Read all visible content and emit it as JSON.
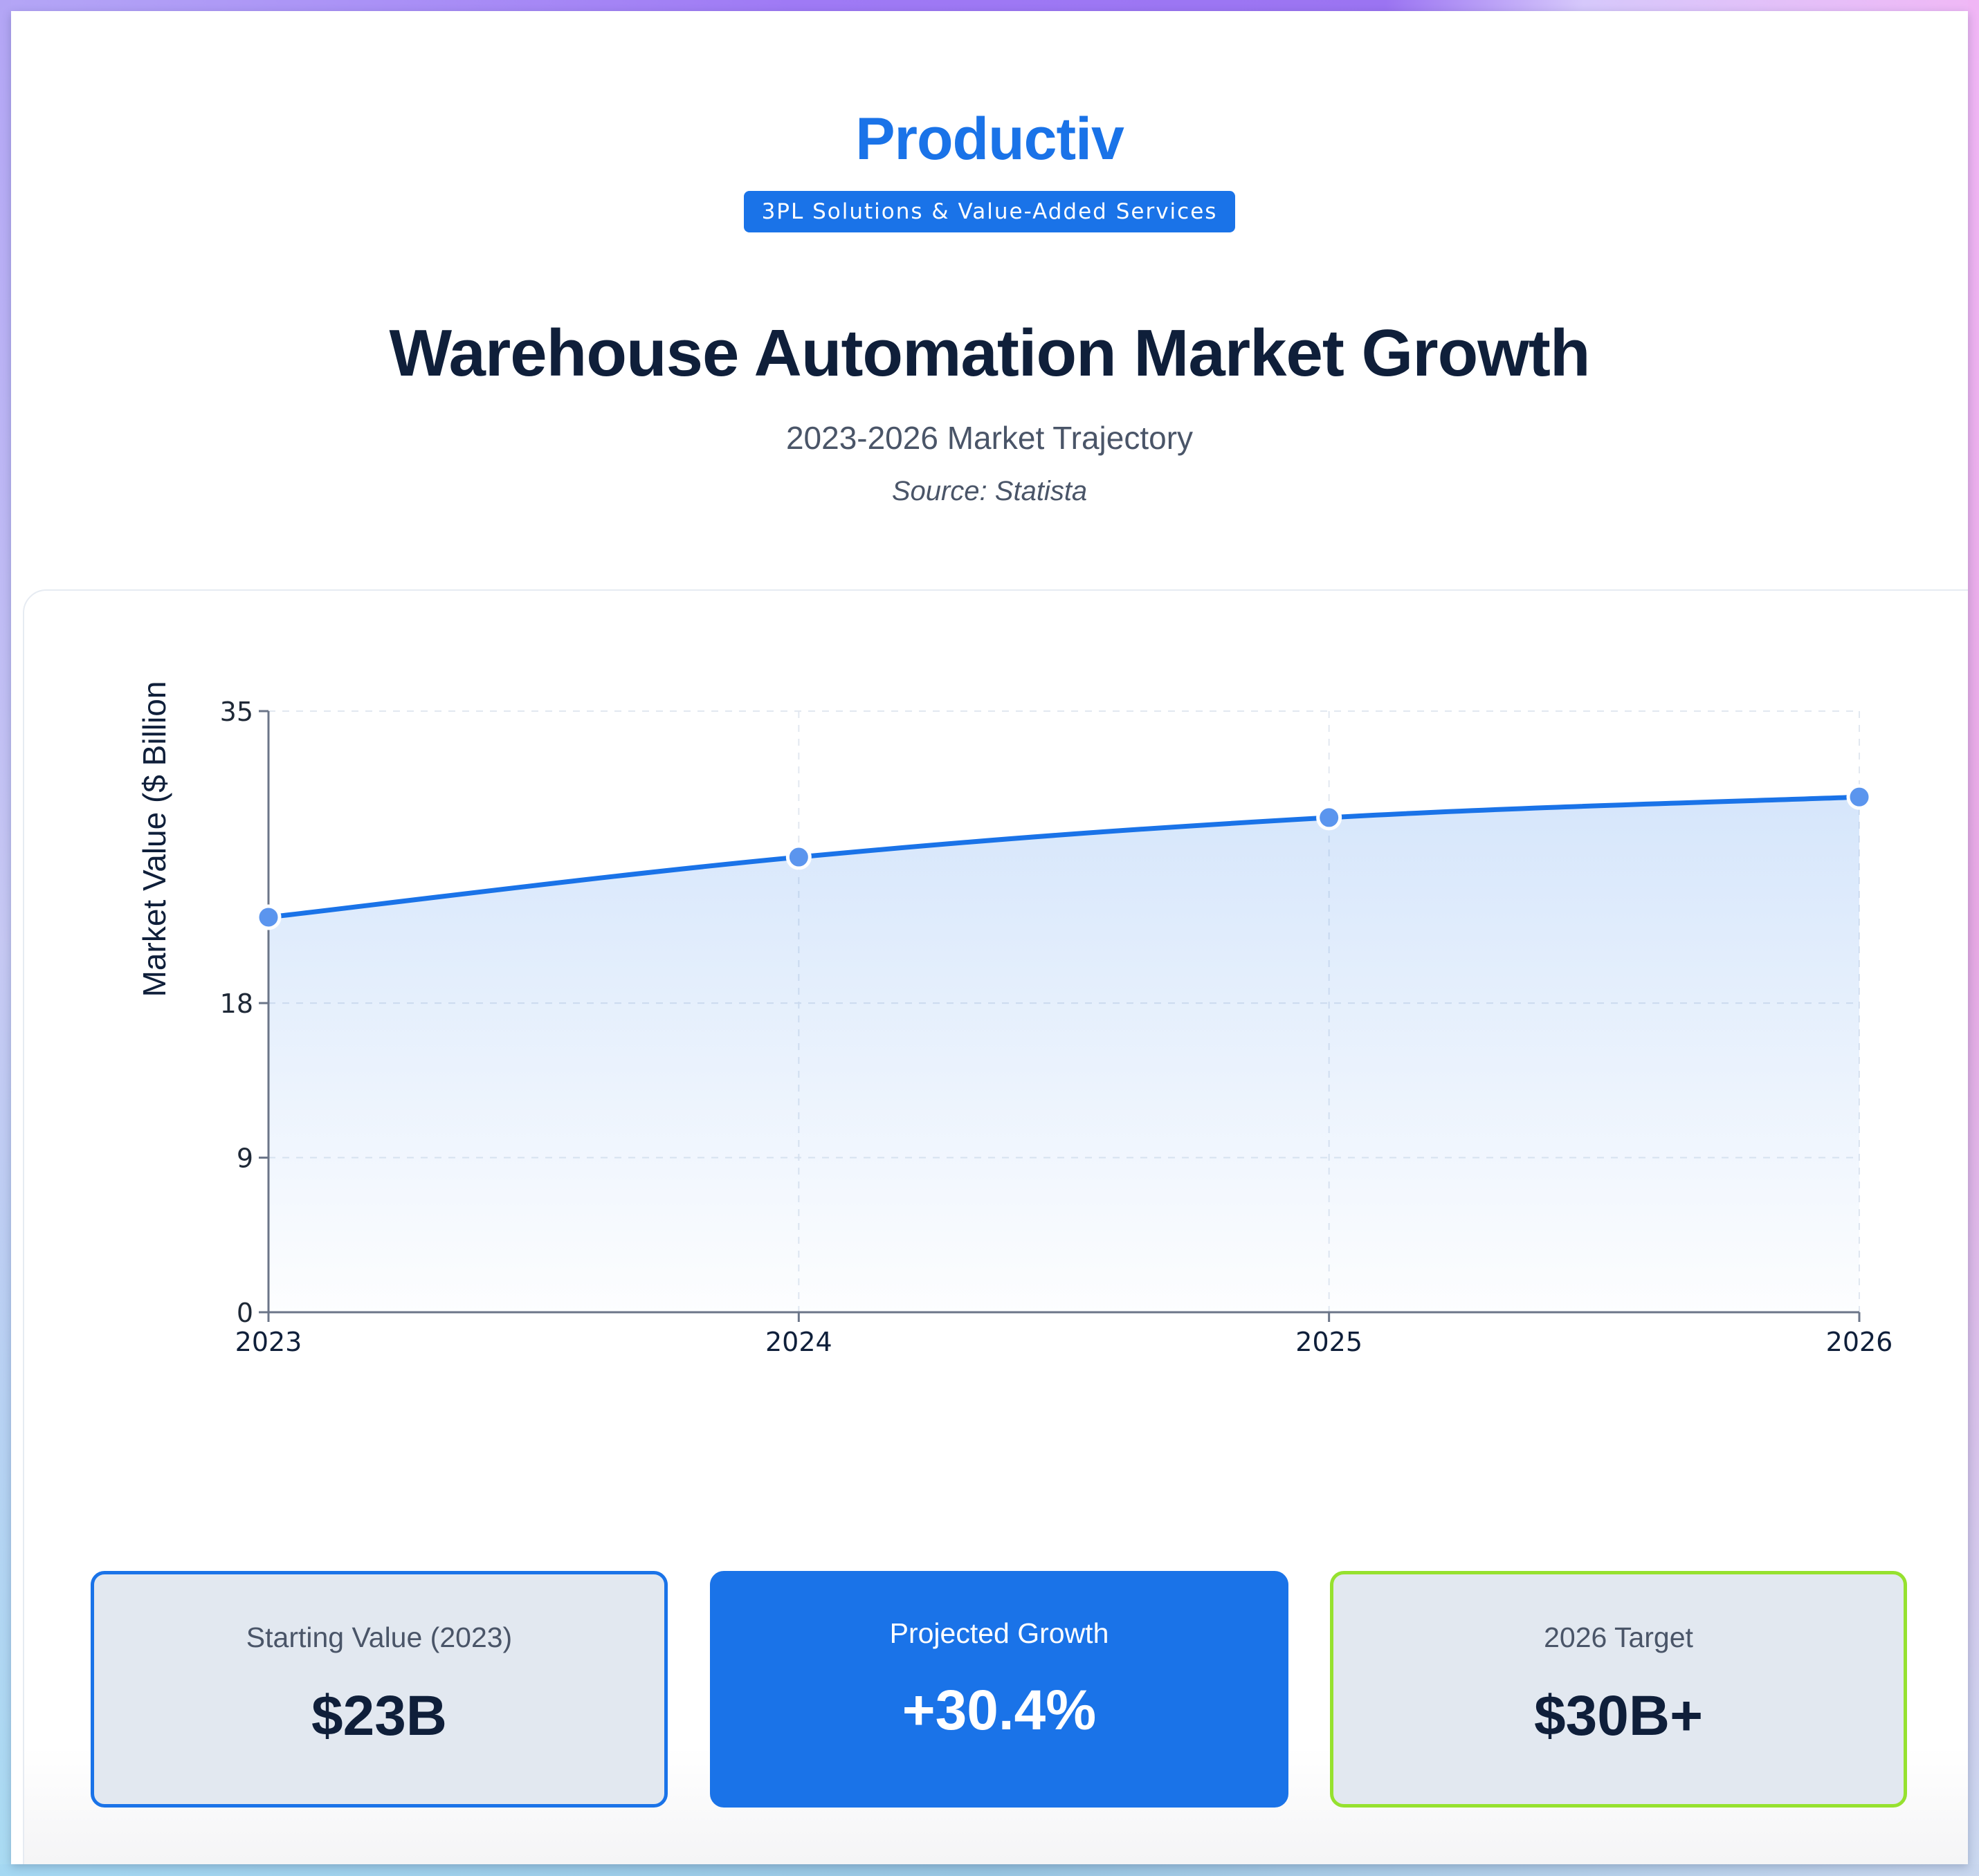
{
  "header": {
    "brand": "Productiv",
    "badge": "3PL Solutions & Value-Added Services",
    "title": "Warehouse Automation Market Growth",
    "subtitle": "2023-2026 Market Trajectory",
    "source": "Source: Statista"
  },
  "colors": {
    "accent": "#1a73e8",
    "heading": "#0f1f3a",
    "muted": "#4a5568",
    "target_border": "#96e12f",
    "card_bg": "#e2e8f0"
  },
  "chart_data": {
    "type": "area",
    "title": "Warehouse Automation Market Growth",
    "subtitle": "2023-2026 Market Trajectory",
    "xlabel": "",
    "ylabel": "Market Value ($ Billion",
    "categories": [
      "2023",
      "2024",
      "2025",
      "2026"
    ],
    "series": [
      {
        "name": "Market Value ($ Billion)",
        "values": [
          23,
          26.5,
          28.8,
          30
        ]
      }
    ],
    "ylim": [
      0,
      35
    ],
    "y_ticks": [
      0,
      9,
      18,
      35
    ],
    "y_tick_labels": [
      "0",
      "9",
      "18",
      "35"
    ],
    "grid": true,
    "legend": "none",
    "line_color": "#1a73e8",
    "fill": "gradient #1a73e8 fading to white"
  },
  "stats": [
    {
      "label": "Starting Value (2023)",
      "value": "$23B"
    },
    {
      "label": "Projected Growth",
      "value": "+30.4%"
    },
    {
      "label": "2026 Target",
      "value": "$30B+"
    }
  ]
}
